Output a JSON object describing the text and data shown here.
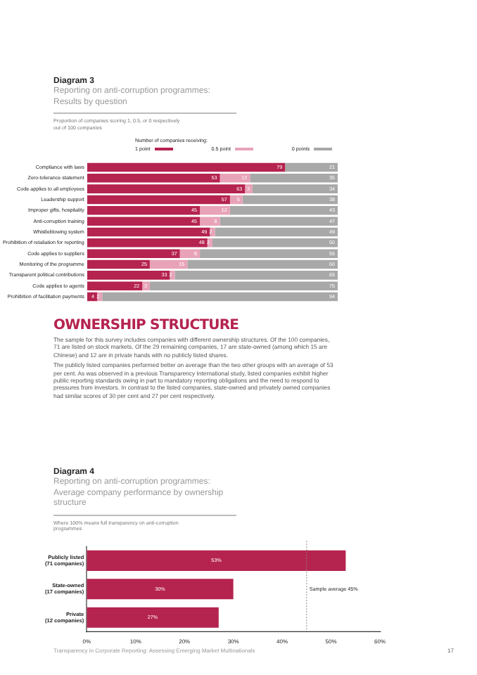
{
  "chart_data": [
    {
      "type": "bar",
      "orientation": "horizontal",
      "stacked": true,
      "title": "Diagram 3",
      "subtitle": "Reporting on anti-corruption programmes: Results by question",
      "annotations": [
        "Proportion of companies scoring 1, 0.5, or 0 respectively out of 100 companies"
      ],
      "legend_title": "Number of companies receiving:",
      "legend": "top",
      "categories": [
        "Compliance with laws",
        "Zero-tolerance statement",
        "Code applies to all employees",
        "Leadership support",
        "Improper gifts, hospitality",
        "Anti-corruption training",
        "Whistleblowing system",
        "Prohibition of retaliation for reporting",
        "Code applies to suppliers",
        "Monitoring of the programme",
        "Transparent political contributions",
        "Code applies to agents",
        "Prohibition of facilitation payments"
      ],
      "series": [
        {
          "name": "1 point",
          "color": "#b5234f",
          "values": [
            79,
            53,
            63,
            57,
            45,
            45,
            49,
            48,
            37,
            25,
            33,
            22,
            4
          ]
        },
        {
          "name": "0.5 point",
          "color": "#e8a3b8",
          "values": [
            null,
            12,
            3,
            5,
            12,
            8,
            2,
            2,
            8,
            15,
            2,
            3,
            2
          ]
        },
        {
          "name": "0 points",
          "color": "#a8a8a8",
          "values": [
            21,
            35,
            34,
            38,
            43,
            47,
            49,
            50,
            55,
            60,
            65,
            75,
            94
          ]
        }
      ],
      "xlim": [
        0,
        100
      ],
      "tick_labels": "y",
      "data_labels": true
    },
    {
      "type": "other",
      "title": "OWNERSHIP STRUCTURE",
      "annotations": [
        "The sample for this survey includes companies with different ownership structures. Of the 100 companies, 71 are listed on stock markets. Of the 29 remaining companies, 17 are state-owned (among which 15 are Chinese) and 12 are in private hands with no publicly listed shares.",
        "The publicly listed companies performed better on average than the two other groups with an average of 53 per cent. As was observed in a previous Transparency International study, listed companies exhibit higher public reporting standards owing in part to mandatory reporting obligations and the need to respond to pressures from investors. In contrast to the listed companies, state-owned and privately owned companies had similar scores of 30 per cent and 27 per cent respectively."
      ]
    },
    {
      "type": "bar",
      "orientation": "horizontal",
      "title": "Diagram 4",
      "subtitle": "Reporting on anti-corruption programmes: Average company performance by ownership structure",
      "annotations": [
        "Where 100% means full transparency on anti-corruption programmes",
        "Transparency in Corporate Reporting: Assessing Emerging Market Multinationals",
        "17"
      ],
      "categories": [
        "Publicly listed (71 companies)",
        "State-owned (17 companies)",
        "Private (12 companies)"
      ],
      "values": [
        53,
        30,
        27
      ],
      "color": "#b5234f",
      "value_labels": [
        "53%",
        "30%",
        "27%"
      ],
      "xlim": [
        0,
        60
      ],
      "xticks": [
        {
          "value": 0,
          "label": "0%"
        },
        {
          "value": 10,
          "label": "10%"
        },
        {
          "value": 20,
          "label": "20%"
        },
        {
          "value": 30,
          "label": "30%"
        },
        {
          "value": 40,
          "label": "40%"
        },
        {
          "value": 50,
          "label": "50%"
        },
        {
          "value": 60,
          "label": "60%"
        }
      ],
      "ref_lines": [
        {
          "axis": "x",
          "value": 45,
          "label": "Sample average 45%"
        }
      ]
    }
  ]
}
